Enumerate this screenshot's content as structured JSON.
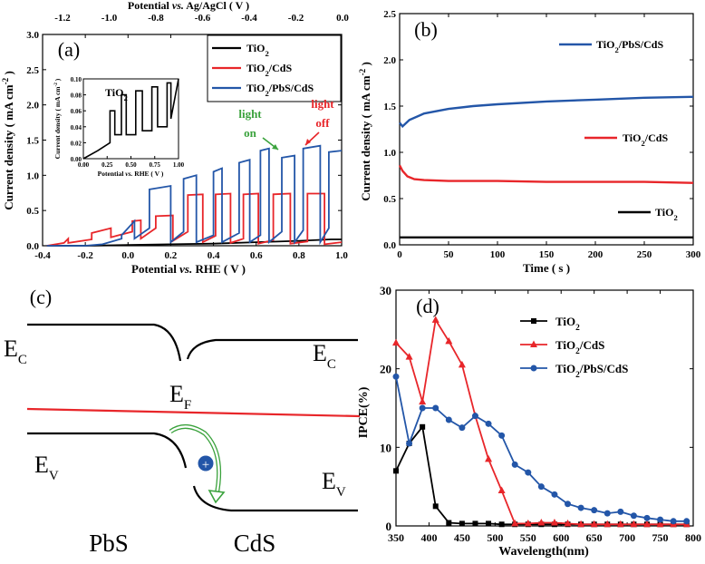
{
  "chart_data": [
    {
      "type": "line",
      "panel_label": "(a)",
      "title": "",
      "xlabel": "Potential vs. RHE ( V )",
      "ylabel": "Current density ( mA cm-2 )",
      "top_xlabel": "Potential vs. Ag/AgCl ( V )",
      "xlim": [
        -0.4,
        1.0
      ],
      "ylim": [
        0,
        3.0
      ],
      "xticks": [
        "-0.4",
        "-0.2",
        "0.0",
        "0.2",
        "0.4",
        "0.6",
        "0.8",
        "1.0"
      ],
      "yticks": [
        "0.0",
        "0.5",
        "1.0",
        "1.5",
        "2.0",
        "2.5",
        "3.0"
      ],
      "top_xticks": [
        "-1.2",
        "-1.0",
        "-0.8",
        "-0.6",
        "-0.4",
        "-0.2",
        "0.0"
      ],
      "legend": [
        "TiO2",
        "TiO2/CdS",
        "TiO2/PbS/CdS"
      ],
      "series": [
        {
          "name": "TiO2",
          "color": "#000000",
          "x": [
            -0.38,
            -0.2,
            0.0,
            0.2,
            0.4,
            0.6,
            0.8,
            0.95,
            1.0
          ],
          "y": [
            0.0,
            0.0,
            0.01,
            0.02,
            0.03,
            0.05,
            0.07,
            0.09,
            0.09
          ]
        },
        {
          "name": "TiO2/CdS",
          "color": "#e8262a",
          "x": [
            -0.38,
            -0.3,
            -0.28,
            -0.28,
            -0.17,
            -0.17,
            -0.08,
            -0.08,
            0.02,
            0.02,
            0.06,
            0.06,
            0.13,
            0.13,
            0.21,
            0.21,
            0.28,
            0.28,
            0.35,
            0.35,
            0.41,
            0.41,
            0.48,
            0.48,
            0.54,
            0.54,
            0.61,
            0.61,
            0.68,
            0.68,
            0.76,
            0.76,
            0.84,
            0.84,
            0.92,
            0.92,
            1.0
          ],
          "y": [
            0.0,
            0.04,
            0.1,
            0.04,
            0.09,
            0.18,
            0.25,
            0.12,
            0.2,
            0.35,
            0.36,
            0.1,
            0.25,
            0.42,
            0.43,
            0.07,
            0.2,
            0.72,
            0.73,
            0.05,
            0.14,
            0.73,
            0.74,
            0.04,
            0.1,
            0.73,
            0.74,
            0.03,
            0.08,
            0.73,
            0.74,
            0.03,
            0.06,
            0.74,
            0.74,
            0.02,
            0.05
          ]
        },
        {
          "name": "TiO2/PbS/CdS",
          "color": "#2356a8",
          "x": [
            -0.38,
            -0.2,
            -0.12,
            -0.03,
            -0.03,
            0.03,
            0.03,
            0.1,
            0.1,
            0.2,
            0.2,
            0.26,
            0.26,
            0.32,
            0.32,
            0.4,
            0.4,
            0.44,
            0.44,
            0.52,
            0.52,
            0.57,
            0.57,
            0.62,
            0.62,
            0.66,
            0.66,
            0.72,
            0.72,
            0.78,
            0.78,
            0.82,
            0.82,
            0.9,
            0.9,
            0.94,
            0.94,
            1.0
          ],
          "y": [
            0.0,
            0.0,
            0.02,
            0.1,
            0.15,
            0.35,
            0.1,
            0.25,
            0.8,
            0.85,
            0.05,
            0.2,
            0.95,
            1.0,
            0.05,
            0.15,
            1.05,
            1.1,
            0.05,
            0.18,
            1.18,
            1.22,
            0.05,
            0.15,
            1.35,
            1.38,
            0.05,
            0.2,
            1.25,
            1.28,
            0.05,
            0.22,
            1.38,
            1.42,
            0.05,
            0.25,
            1.33,
            1.35
          ]
        }
      ],
      "annotations": [
        {
          "text": "light on",
          "color": "#3aa23c"
        },
        {
          "text": "light off",
          "color": "#e8262a"
        }
      ],
      "inset": {
        "title": "TiO2",
        "xlabel": "Potential vs. RHE ( V )",
        "ylabel": "Current density ( mA cm-2 )",
        "xlim": [
          0,
          1.0
        ],
        "ylim": [
          0,
          0.1
        ],
        "xticks": [
          "0.00",
          "0.25",
          "0.50",
          "0.75",
          "1.00"
        ],
        "yticks": [
          "0.00",
          "0.02",
          "0.04",
          "0.06",
          "0.08",
          "0.10"
        ],
        "x": [
          0.0,
          0.15,
          0.28,
          0.28,
          0.33,
          0.33,
          0.4,
          0.4,
          0.45,
          0.45,
          0.55,
          0.55,
          0.62,
          0.62,
          0.72,
          0.72,
          0.78,
          0.78,
          0.88,
          0.88,
          0.92,
          0.92,
          1.0
        ],
        "y": [
          0.0,
          0.01,
          0.02,
          0.06,
          0.06,
          0.03,
          0.03,
          0.08,
          0.08,
          0.03,
          0.03,
          0.085,
          0.085,
          0.035,
          0.035,
          0.09,
          0.09,
          0.04,
          0.04,
          0.095,
          0.095,
          0.05,
          0.1
        ]
      }
    },
    {
      "type": "line",
      "panel_label": "(b)",
      "title": "",
      "xlabel": "Time ( s )",
      "ylabel": "Current density ( mA cm-2 )",
      "xlim": [
        0,
        300
      ],
      "ylim": [
        0,
        2.5
      ],
      "xticks": [
        "0",
        "50",
        "100",
        "150",
        "200",
        "250",
        "300"
      ],
      "yticks": [
        "0.0",
        "0.5",
        "1.0",
        "1.5",
        "2.0",
        "2.5"
      ],
      "series": [
        {
          "name": "TiO2/PbS/CdS",
          "color": "#2356a8",
          "x": [
            0,
            3,
            10,
            25,
            50,
            75,
            100,
            150,
            200,
            250,
            300
          ],
          "y": [
            1.32,
            1.28,
            1.35,
            1.42,
            1.47,
            1.5,
            1.52,
            1.55,
            1.57,
            1.59,
            1.6
          ]
        },
        {
          "name": "TiO2/CdS",
          "color": "#e8262a",
          "x": [
            0,
            3,
            8,
            15,
            25,
            50,
            100,
            150,
            200,
            250,
            300
          ],
          "y": [
            0.86,
            0.8,
            0.74,
            0.71,
            0.7,
            0.69,
            0.69,
            0.68,
            0.68,
            0.68,
            0.67
          ]
        },
        {
          "name": "TiO2",
          "color": "#000000",
          "x": [
            0,
            50,
            100,
            150,
            200,
            250,
            300
          ],
          "y": [
            0.08,
            0.08,
            0.08,
            0.08,
            0.08,
            0.08,
            0.08
          ]
        }
      ]
    },
    {
      "type": "line",
      "panel_label": "(d)",
      "title": "",
      "xlabel": "Wavelength(nm)",
      "ylabel": "IPCE(%)",
      "xlim": [
        350,
        800
      ],
      "ylim": [
        0,
        30
      ],
      "xticks": [
        "350",
        "400",
        "450",
        "500",
        "550",
        "600",
        "650",
        "700",
        "750",
        "800"
      ],
      "yticks": [
        "0",
        "10",
        "20",
        "30"
      ],
      "legend": [
        "TiO2",
        "TiO2/CdS",
        "TiO2/PbS/CdS"
      ],
      "series": [
        {
          "name": "TiO2",
          "color": "#000000",
          "marker": "square",
          "x": [
            350,
            370,
            390,
            410,
            430,
            450,
            470,
            490,
            510,
            530,
            550,
            570,
            590,
            610,
            630,
            650,
            670,
            690,
            710,
            730,
            750,
            770,
            790
          ],
          "y": [
            7.0,
            10.5,
            12.6,
            2.5,
            0.4,
            0.3,
            0.3,
            0.3,
            0.2,
            0.2,
            0.2,
            0.2,
            0.2,
            0.2,
            0.2,
            0.2,
            0.2,
            0.2,
            0.2,
            0.2,
            0.2,
            0.2,
            0.2
          ]
        },
        {
          "name": "TiO2/CdS",
          "color": "#e8262a",
          "marker": "triangle",
          "x": [
            350,
            370,
            390,
            410,
            430,
            450,
            470,
            490,
            510,
            530,
            550,
            570,
            590,
            610,
            630,
            650,
            670,
            690,
            710,
            730,
            750,
            770,
            790
          ],
          "y": [
            23.3,
            21.5,
            15.8,
            26.2,
            23.5,
            20.5,
            14.0,
            8.5,
            4.5,
            0.3,
            0.3,
            0.4,
            0.4,
            0.3,
            0.2,
            0.2,
            0.2,
            0.2,
            0.2,
            0.2,
            0.2,
            0.2,
            0.2
          ]
        },
        {
          "name": "TiO2/PbS/CdS",
          "color": "#2356a8",
          "marker": "circle",
          "x": [
            350,
            370,
            390,
            410,
            430,
            450,
            470,
            490,
            510,
            530,
            550,
            570,
            590,
            610,
            630,
            650,
            670,
            690,
            710,
            730,
            750,
            770,
            790
          ],
          "y": [
            19.0,
            10.5,
            15.0,
            15.0,
            13.5,
            12.5,
            14.0,
            13.0,
            11.5,
            7.8,
            6.8,
            5.0,
            4.0,
            2.8,
            2.3,
            2.0,
            1.6,
            1.8,
            1.3,
            1.0,
            0.8,
            0.6,
            0.6
          ]
        }
      ]
    }
  ],
  "diagram_c": {
    "panel_label": "(c)",
    "labels": {
      "ec_left": "E",
      "ec_left_sub": "C",
      "ec_right": "E",
      "ec_right_sub": "C",
      "ef": "E",
      "ef_sub": "F",
      "ev_left": "E",
      "ev_left_sub": "V",
      "ev_right": "E",
      "ev_right_sub": "V",
      "pbs": "PbS",
      "cds": "CdS",
      "hole": "+"
    },
    "colors": {
      "fermi": "#e8262a",
      "arrow": "#3aa23c",
      "hole": "#2356a8",
      "band": "#000000"
    }
  },
  "legend_a": [
    "TiO2",
    "TiO2/CdS",
    "TiO2/PbS/CdS"
  ],
  "legend_d": [
    "TiO2",
    "TiO2/CdS",
    "TiO2/PbS/CdS"
  ]
}
